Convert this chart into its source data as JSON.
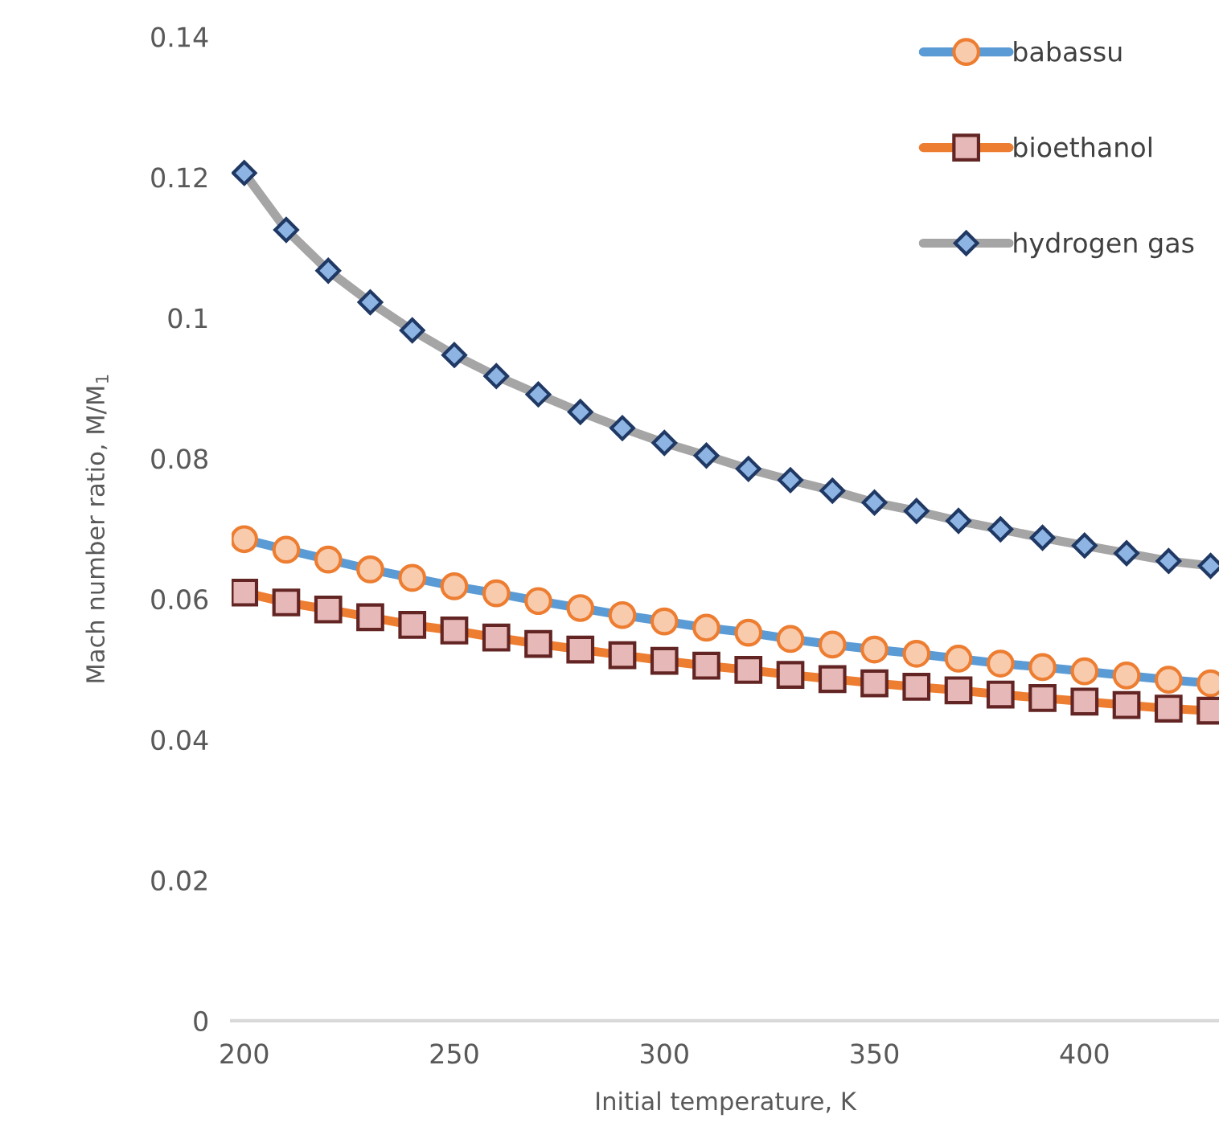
{
  "chart_data": {
    "type": "line",
    "xlabel": "Initial temperature, K",
    "ylabel": "Mach number ratio, M/M$_{1}$",
    "x": [
      200,
      210,
      220,
      230,
      240,
      250,
      260,
      270,
      280,
      290,
      300,
      310,
      320,
      330,
      340,
      350,
      360,
      370,
      380,
      390,
      400,
      410,
      420,
      430
    ],
    "series": [
      {
        "name": "babassu",
        "color": "#5b9bd5",
        "marker": "circle",
        "values": [
          0.0685,
          0.067,
          0.0656,
          0.0642,
          0.063,
          0.0618,
          0.0608,
          0.0597,
          0.0587,
          0.0577,
          0.0568,
          0.0559,
          0.0552,
          0.0543,
          0.0535,
          0.0528,
          0.0522,
          0.0515,
          0.0508,
          0.0503,
          0.0497,
          0.0491,
          0.0485,
          0.048
        ]
      },
      {
        "name": "bioethanol",
        "color": "#ed7d31",
        "marker": "square",
        "values": [
          0.0609,
          0.0595,
          0.0585,
          0.0574,
          0.0563,
          0.0555,
          0.0545,
          0.0536,
          0.0528,
          0.052,
          0.0512,
          0.0505,
          0.0499,
          0.0492,
          0.0486,
          0.048,
          0.0475,
          0.047,
          0.0464,
          0.0459,
          0.0454,
          0.0449,
          0.0444,
          0.0441
        ]
      },
      {
        "name": "hydrogen gas",
        "color": "#a5a5a5",
        "marker": "diamond",
        "values": [
          0.1206,
          0.1125,
          0.1067,
          0.1022,
          0.0982,
          0.0947,
          0.0917,
          0.0891,
          0.0866,
          0.0843,
          0.0822,
          0.0804,
          0.0785,
          0.0769,
          0.0754,
          0.0737,
          0.0725,
          0.0711,
          0.0699,
          0.0687,
          0.0676,
          0.0665,
          0.0654,
          0.0647
        ]
      }
    ],
    "xlim": [
      197,
      432
    ],
    "xticks": [
      200,
      250,
      300,
      350,
      400
    ],
    "ylim": [
      0,
      0.14
    ],
    "yticks": [
      0,
      0.02,
      0.04,
      0.06,
      0.08,
      0.1,
      0.12,
      0.14
    ],
    "grid": false,
    "legend": "top right",
    "line_style": "solid"
  }
}
